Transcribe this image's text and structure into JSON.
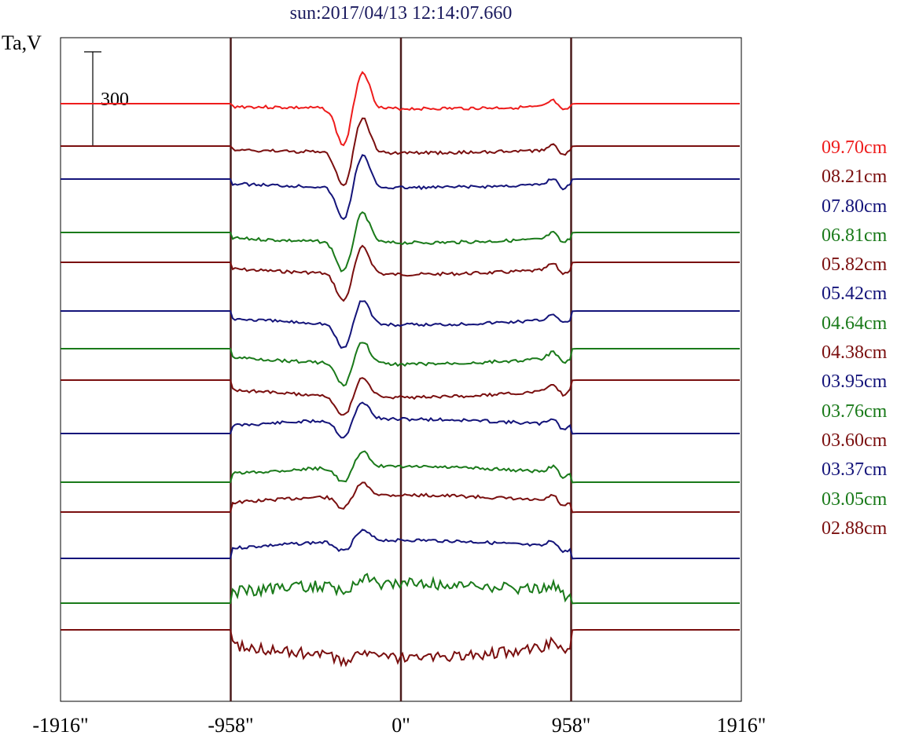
{
  "title": "sun:2017/04/13 12:14:07.660",
  "ylabel": "Ta,V",
  "scale_bar_label": "300",
  "chart_data": {
    "type": "line",
    "xlim": [
      -1916,
      1916
    ],
    "x_ticks": [
      -1916,
      -958,
      0,
      958,
      1916
    ],
    "x_tick_labels": [
      "-1916\"",
      "-958\"",
      "0\"",
      "958\"",
      "1916\""
    ],
    "vertical_markers": [
      -958,
      0,
      958
    ],
    "scale_bar_value": 300,
    "series": [
      {
        "name": "09.70cm",
        "color": "#ee1c1c"
      },
      {
        "name": "08.21cm",
        "color": "#7a0f0f"
      },
      {
        "name": "07.80cm",
        "color": "#14147a"
      },
      {
        "name": "06.81cm",
        "color": "#1a7a1a"
      },
      {
        "name": "05.82cm",
        "color": "#7a0f0f"
      },
      {
        "name": "05.42cm",
        "color": "#14147a"
      },
      {
        "name": "04.64cm",
        "color": "#1a7a1a"
      },
      {
        "name": "04.38cm",
        "color": "#7a0f0f"
      },
      {
        "name": "03.95cm",
        "color": "#14147a"
      },
      {
        "name": "03.76cm",
        "color": "#1a7a1a"
      },
      {
        "name": "03.60cm",
        "color": "#7a0f0f"
      },
      {
        "name": "03.37cm",
        "color": "#14147a"
      },
      {
        "name": "03.05cm",
        "color": "#1a7a1a"
      },
      {
        "name": "02.88cm",
        "color": "#7a0f0f"
      }
    ]
  }
}
